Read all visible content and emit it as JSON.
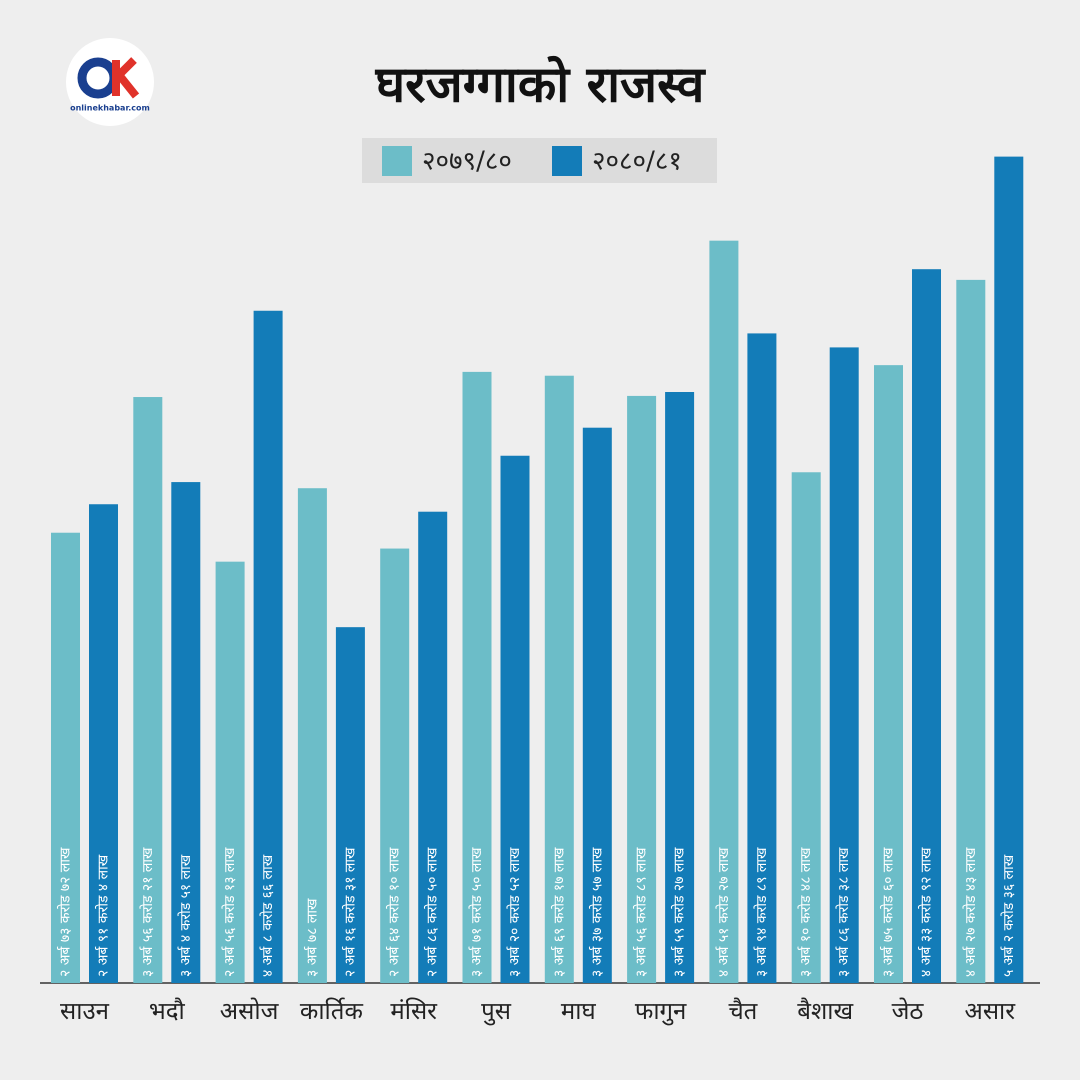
{
  "chart_data": {
    "type": "bar",
    "title": "घरजग्गाको राजस्व",
    "logo": "onlinekhabar.com",
    "categories": [
      "साउन",
      "भदौ",
      "असोज",
      "कार्तिक",
      "मंसिर",
      "पुस",
      "माघ",
      "फागुन",
      "चैत",
      "बैशाख",
      "जेठ",
      "असार"
    ],
    "series": [
      {
        "name": "२०७९/८०",
        "color": "#6cbdc8",
        "values": [
          273.72,
          356.21,
          256.13,
          300.78,
          264.1,
          371.5,
          369.17,
          356.89,
          451.27,
          310.48,
          375.6,
          427.43
        ],
        "value_labels": [
          "२ अर्ब ७३ करोड ७२ लाख",
          "३ अर्ब ५६ करोड २१ लाख",
          "२ अर्ब ५६ करोड १३ लाख",
          "३ अर्ब ७८ लाख",
          "२ अर्ब ६४ करोड १० लाख",
          "३ अर्ब ७१ करोड ५० लाख",
          "३ अर्ब ६९ करोड १७ लाख",
          "३ अर्ब ५६ करोड ८९ लाख",
          "४ अर्ब ५१ करोड २७ लाख",
          "३ अर्ब १० करोड ४८ लाख",
          "३ अर्ब ७५ करोड ६० लाख",
          "४ अर्ब २७ करोड ४३ लाख"
        ]
      },
      {
        "name": "२०८०/८१",
        "color": "#137cb8",
        "values": [
          291.04,
          304.51,
          408.66,
          216.31,
          286.5,
          320.52,
          337.57,
          359.27,
          394.89,
          386.38,
          433.92,
          502.36
        ],
        "value_labels": [
          "२ अर्ब ९१ करोड ४ लाख",
          "३ अर्ब ४ करोड ५१ लाख",
          "४ अर्ब ८ करोड ६६ लाख",
          "२ अर्ब १६ करोड ३१ लाख",
          "२ अर्ब ८६ करोड ५० लाख",
          "३ अर्ब २० करोड ५२ लाख",
          "३ अर्ब ३७ करोड ५७ लाख",
          "३ अर्ब ५९ करोड २७ लाख",
          "३ अर्ब ९४ करोड ८९ लाख",
          "३ अर्ब ८६ करोड ३८ लाख",
          "४ अर्ब ३३ करोड ९२ लाख",
          "५ अर्ब २ करोड ३६ लाख"
        ]
      }
    ]
  }
}
